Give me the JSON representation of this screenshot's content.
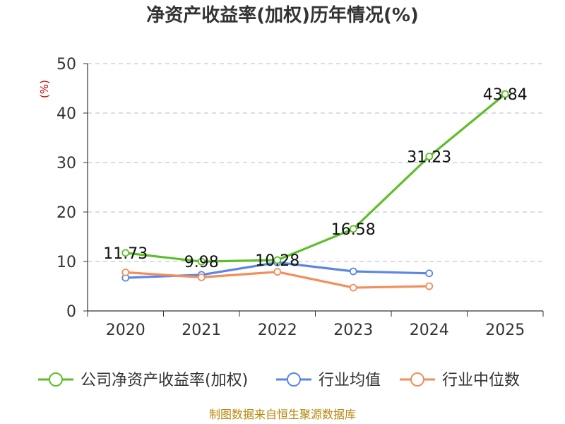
{
  "chart_data": {
    "type": "line",
    "title": "净资产收益率(加权)历年情况(%)",
    "ylabel": "(%)",
    "xlabel": "",
    "categories": [
      "2020",
      "2021",
      "2022",
      "2023",
      "2024",
      "2025"
    ],
    "ylim": [
      0,
      50
    ],
    "yticks": [
      "0",
      "10",
      "20",
      "30",
      "40",
      "50"
    ],
    "grid": true,
    "legend_position": "bottom",
    "series": [
      {
        "name": "公司净资产收益率(加权)",
        "color": "#5cbf2a",
        "values": [
          11.73,
          9.98,
          10.28,
          16.58,
          31.23,
          43.84
        ],
        "labels": [
          "11.73",
          "9.98",
          "10.28",
          "16.58",
          "31.23",
          "43.84"
        ]
      },
      {
        "name": "行业均值",
        "color": "#5b86e5",
        "values": [
          6.7,
          7.3,
          9.8,
          8.0,
          7.6,
          null
        ]
      },
      {
        "name": "行业中位数",
        "color": "#f28e5c",
        "values": [
          7.8,
          6.8,
          7.9,
          4.7,
          5.0,
          null
        ]
      }
    ],
    "source": "制图数据来自恒生聚源数据库",
    "colors": {
      "unit": "#cc0000",
      "source": "#b8860b",
      "axis": "#333333",
      "grid": "#bbbbbb"
    }
  }
}
